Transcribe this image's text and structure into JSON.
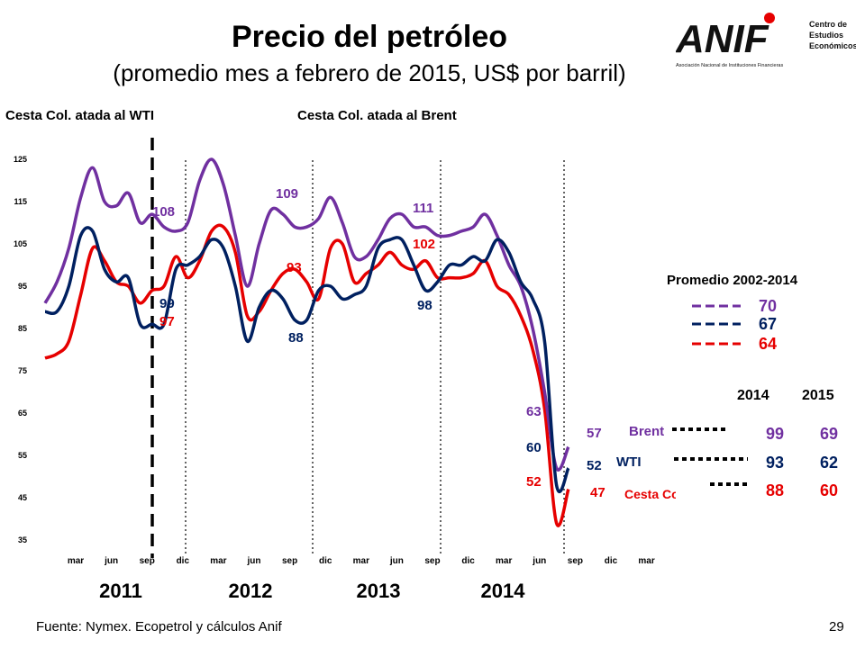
{
  "title": "Precio del petróleo",
  "subtitle": "(promedio mes a febrero de 2015, US$ por barril)",
  "left_heading": "Cesta Col. atada al WTI",
  "right_heading": "Cesta Col. atada al Brent",
  "footer": "Fuente: Nymex. Ecopetrol y cálculos Anif",
  "page_number": "29",
  "logo": {
    "text": "ANIF",
    "tagline": "Asociación Nacional de Instituciones Financieras",
    "side_1": "Centro de",
    "side_2": "Estudios",
    "side_3": "Económicos"
  },
  "colors": {
    "brent": "#7030a0",
    "wti": "#002060",
    "cesta": "#e60000"
  },
  "chart_data": {
    "type": "line",
    "ylim": [
      35,
      125
    ],
    "yticks": [
      35,
      45,
      55,
      65,
      75,
      85,
      95,
      105,
      115,
      125
    ],
    "xtick_labels": [
      "mar",
      "jun",
      "sep",
      "dic",
      "mar",
      "jun",
      "sep",
      "dic",
      "mar",
      "jun",
      "sep",
      "dic",
      "mar",
      "jun",
      "sep",
      "dic",
      "mar"
    ],
    "years": [
      "2011",
      "2012",
      "2013",
      "2014"
    ],
    "series": [
      {
        "name": "Brent",
        "color": "#7030a0",
        "values": [
          91,
          96,
          104,
          116,
          123,
          115,
          114,
          117,
          110,
          112,
          109,
          108,
          110,
          120,
          125,
          119,
          107,
          95,
          105,
          113,
          112,
          109,
          109,
          111,
          116,
          110,
          102,
          102,
          106,
          111,
          112,
          109,
          109,
          107,
          107,
          108,
          109,
          112,
          107,
          100,
          95,
          85,
          70,
          52,
          57
        ]
      },
      {
        "name": "WTI",
        "color": "#002060",
        "values": [
          89,
          89,
          95,
          107,
          108,
          99,
          96,
          97,
          86,
          86,
          86,
          99,
          100,
          102,
          106,
          104,
          95,
          82,
          90,
          94,
          92,
          87,
          87,
          94,
          95,
          92,
          93,
          95,
          104,
          106,
          106,
          100,
          94,
          96,
          100,
          100,
          102,
          101,
          106,
          103,
          96,
          92,
          82,
          48,
          52
        ]
      },
      {
        "name": "Cesta Col",
        "color": "#e60000",
        "values": [
          78,
          79,
          82,
          93,
          104,
          101,
          96,
          95,
          91,
          94,
          95,
          102,
          97,
          101,
          108,
          109,
          103,
          88,
          89,
          94,
          98,
          99,
          96,
          92,
          104,
          105,
          96,
          98,
          100,
          103,
          100,
          99,
          101,
          97,
          97,
          97,
          98,
          101,
          95,
          93,
          88,
          80,
          66,
          39,
          47
        ]
      }
    ],
    "data_labels": [
      {
        "text": "108",
        "series": "Brent"
      },
      {
        "text": "99",
        "series": "WTI"
      },
      {
        "text": "97",
        "series": "Cesta Col"
      },
      {
        "text": "109",
        "series": "Brent"
      },
      {
        "text": "93",
        "series": "Cesta Col"
      },
      {
        "text": "88",
        "series": "WTI"
      },
      {
        "text": "111",
        "series": "Brent"
      },
      {
        "text": "102",
        "series": "Cesta Col"
      },
      {
        "text": "98",
        "series": "WTI"
      },
      {
        "text": "63",
        "series": "Brent"
      },
      {
        "text": "60",
        "series": "WTI"
      },
      {
        "text": "52",
        "series": "Cesta Col"
      },
      {
        "text": "57",
        "series": "Brent"
      },
      {
        "text": "52",
        "series": "WTI"
      },
      {
        "text": "47",
        "series": "Cesta Col"
      }
    ]
  },
  "average": {
    "title": "Promedio 2002-2014",
    "values": [
      "70",
      "67",
      "64"
    ]
  },
  "table": {
    "col_2014": "2014",
    "col_2015": "2015",
    "rows": [
      {
        "name": "Brent",
        "v2014": "99",
        "v2015": "69"
      },
      {
        "name": "WTI",
        "v2014": "93",
        "v2015": "62"
      },
      {
        "name": "Cesta Col",
        "v2014": "88",
        "v2015": "60"
      }
    ]
  }
}
